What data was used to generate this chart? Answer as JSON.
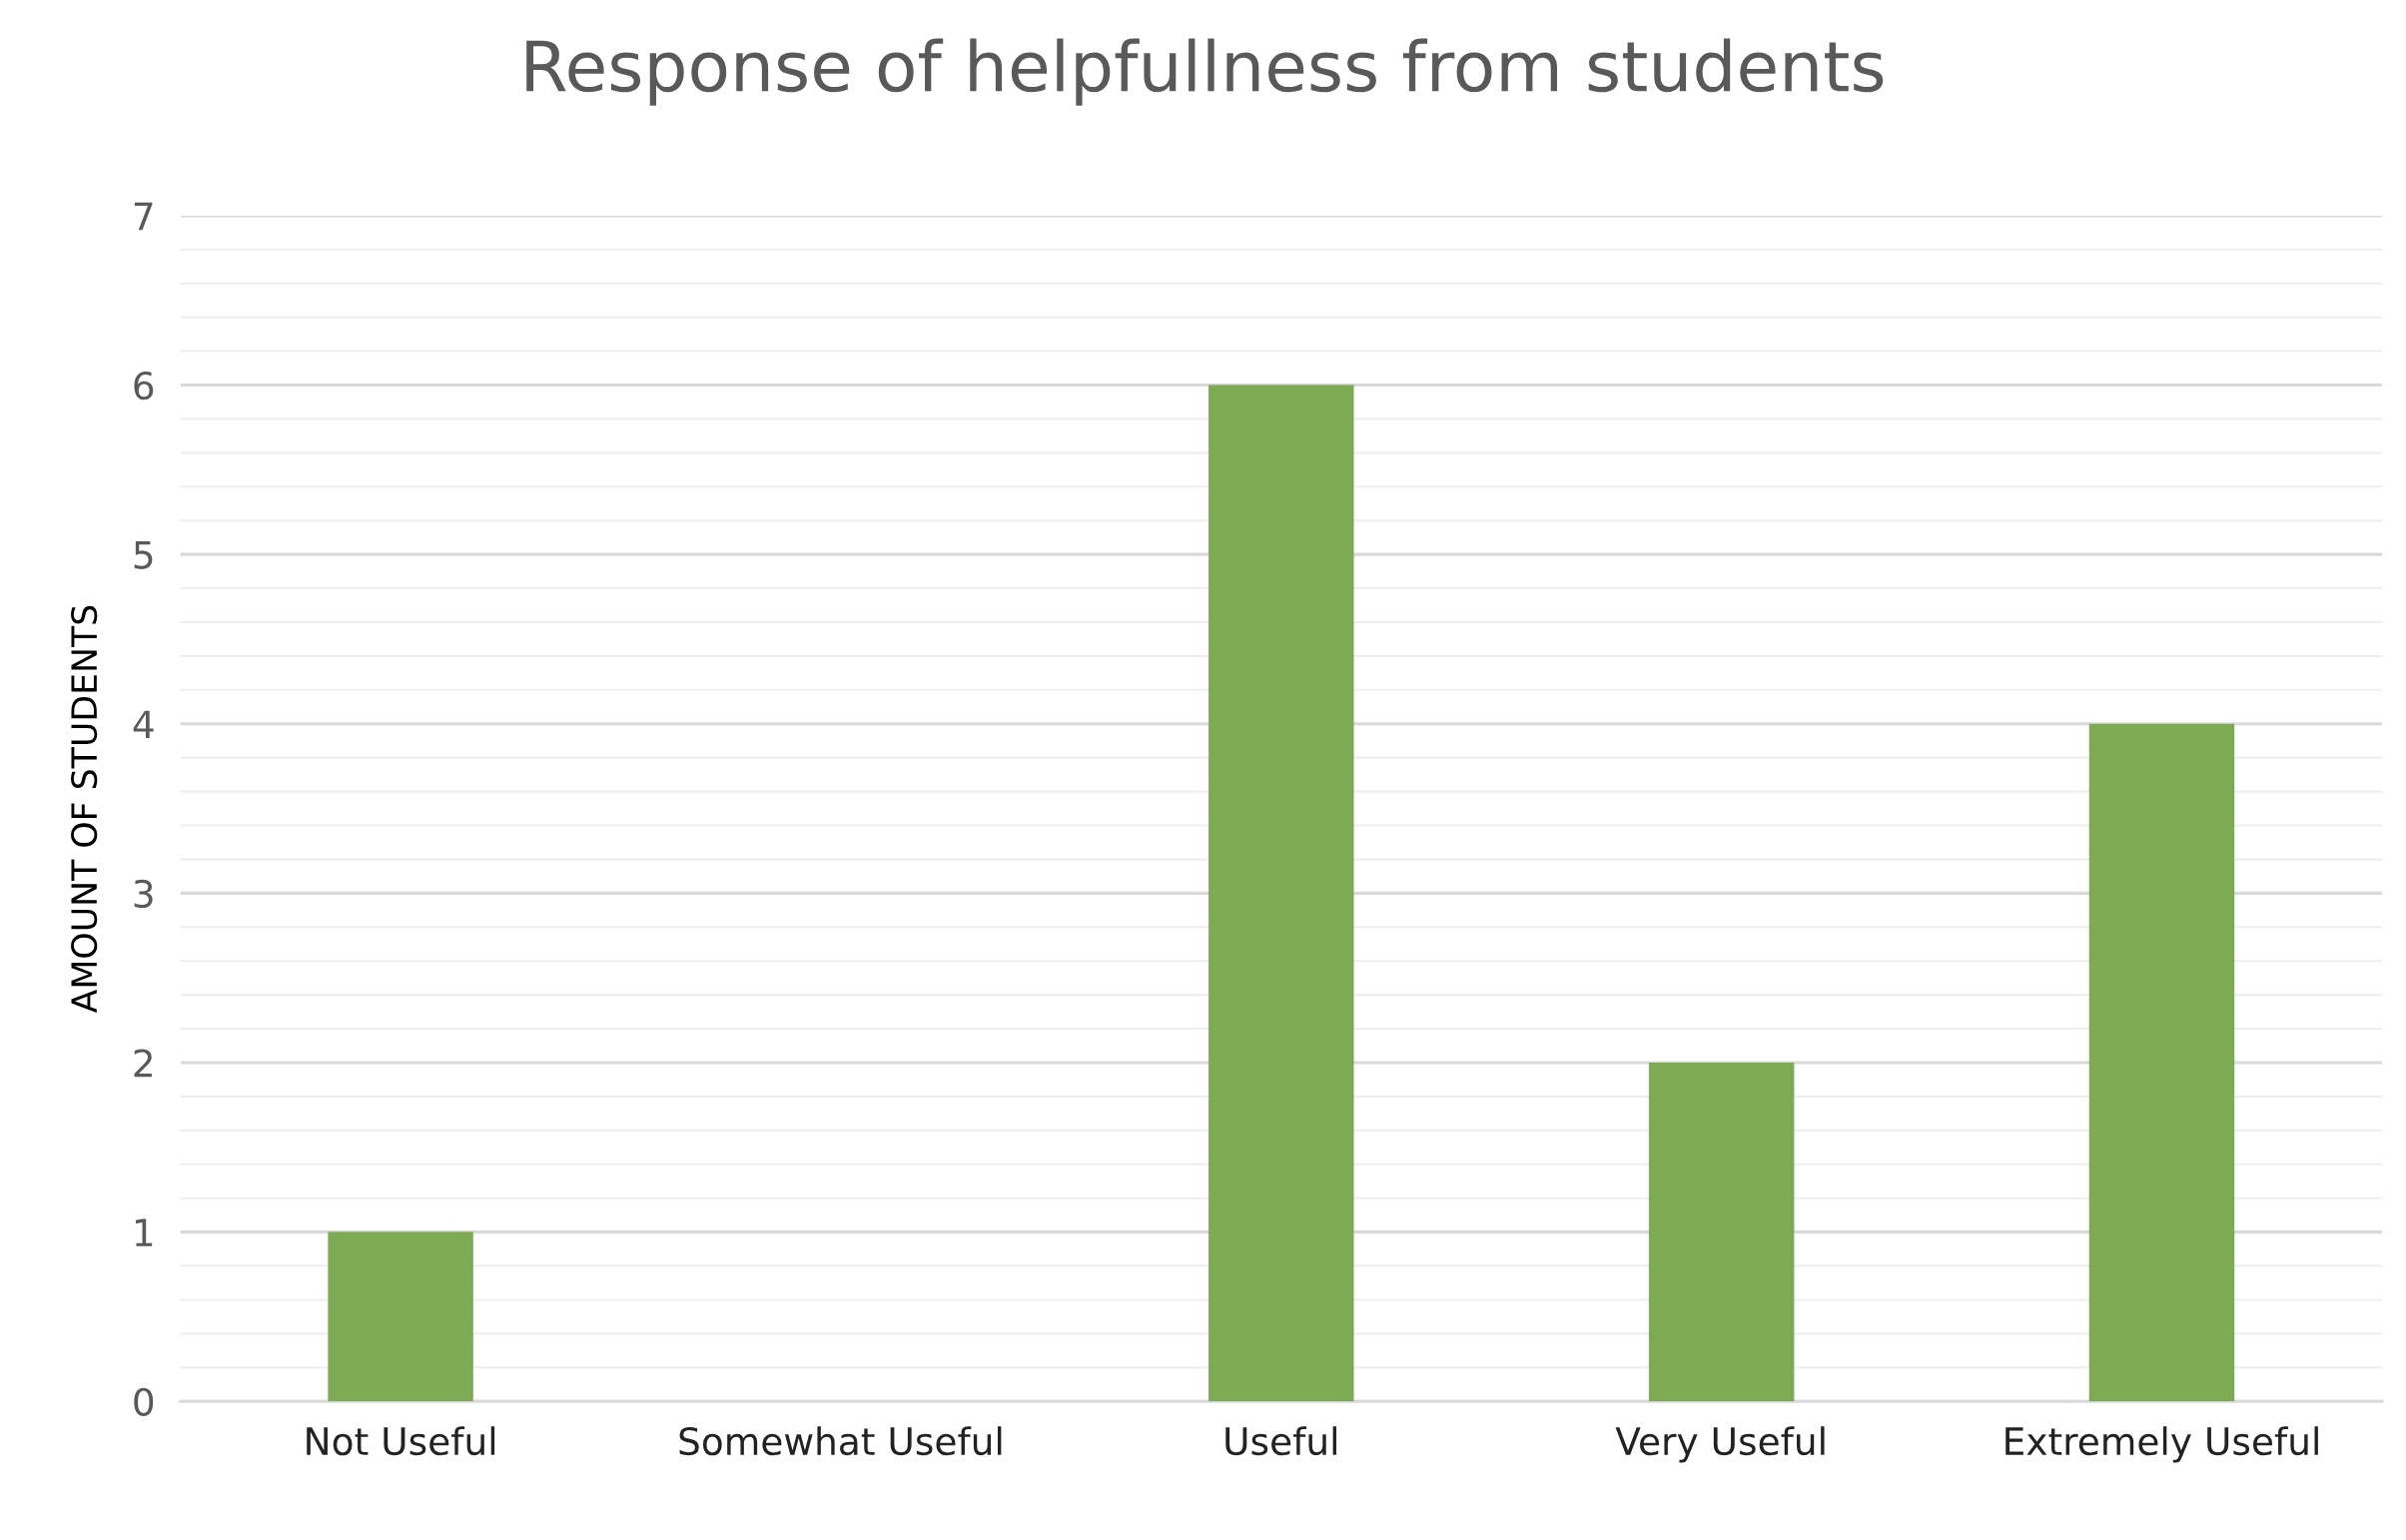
{
  "chart_data": {
    "type": "bar",
    "title": "Response of helpfullness from students",
    "ylabel": "AMOUNT OF STUDENTS",
    "categories": [
      "Not Useful",
      "Somewhat Useful",
      "Useful",
      "Very Useful",
      "Extremely Useful"
    ],
    "values": [
      1,
      0,
      6,
      2,
      4
    ],
    "color": "#7faa55",
    "ylim": [
      0,
      7
    ],
    "yticks": [
      0,
      {
        "value": 0.2,
        "label": null
      },
      {
        "value": 0.4,
        "label": null
      },
      {
        "value": 0.6,
        "label": null
      },
      {
        "value": 0.8,
        "label": null
      },
      1,
      {
        "value": 1.2,
        "label": null
      },
      {
        "value": 1.4,
        "label": null
      },
      {
        "value": 1.6,
        "label": null
      },
      {
        "value": 1.8,
        "label": null
      },
      2,
      {
        "value": 2.2,
        "label": null
      },
      {
        "value": 2.4,
        "label": null
      },
      {
        "value": 2.6,
        "label": null
      },
      {
        "value": 2.8,
        "label": null
      },
      3,
      {
        "value": 3.2,
        "label": null
      },
      {
        "value": 3.4,
        "label": null
      },
      {
        "value": 3.6,
        "label": null
      },
      {
        "value": 3.8,
        "label": null
      },
      4,
      {
        "value": 4.2,
        "label": null
      },
      {
        "value": 4.4,
        "label": null
      },
      {
        "value": 4.6,
        "label": null
      },
      {
        "value": 4.8,
        "label": null
      },
      5,
      {
        "value": 5.2,
        "label": null
      },
      {
        "value": 5.4,
        "label": null
      },
      {
        "value": 5.6,
        "label": null
      },
      {
        "value": 5.8,
        "label": null
      },
      6,
      {
        "value": 6.2,
        "label": null
      },
      {
        "value": 6.4,
        "label": null
      },
      {
        "value": 6.6,
        "label": null
      },
      {
        "value": 6.8,
        "label": null
      },
      7
    ],
    "grid": "y"
  }
}
